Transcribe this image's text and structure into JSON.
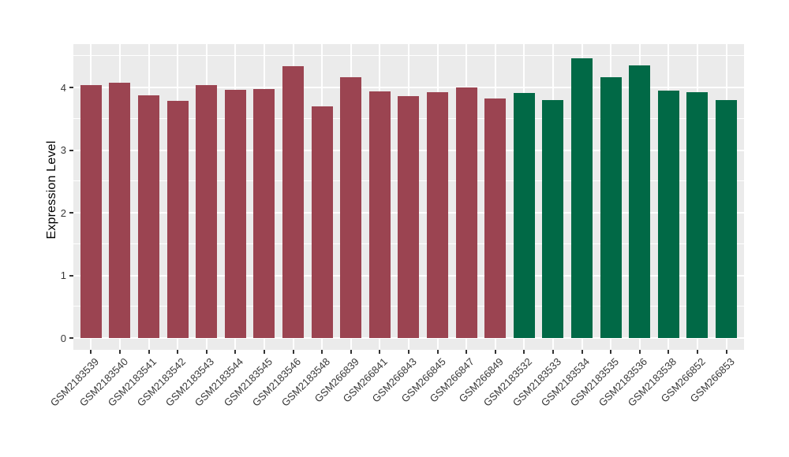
{
  "chart_data": {
    "type": "bar",
    "title": "",
    "xlabel": "",
    "ylabel": "Expression Level",
    "categories": [
      "GSM2183539",
      "GSM2183540",
      "GSM2183541",
      "GSM2183542",
      "GSM2183543",
      "GSM2183544",
      "GSM2183545",
      "GSM2183546",
      "GSM2183548",
      "GSM266839",
      "GSM266841",
      "GSM266843",
      "GSM266845",
      "GSM266847",
      "GSM266849",
      "GSM2183532",
      "GSM2183533",
      "GSM2183534",
      "GSM2183535",
      "GSM2183536",
      "GSM2183538",
      "GSM266852",
      "GSM266853"
    ],
    "values": [
      4.04,
      4.07,
      3.88,
      3.79,
      4.04,
      3.96,
      3.97,
      4.34,
      3.7,
      4.17,
      3.94,
      3.86,
      3.92,
      4.0,
      3.83,
      3.91,
      3.8,
      4.46,
      4.17,
      4.35,
      3.95,
      3.93,
      3.8
    ],
    "groups": [
      0,
      0,
      0,
      0,
      0,
      0,
      0,
      0,
      0,
      0,
      0,
      0,
      0,
      0,
      0,
      1,
      1,
      1,
      1,
      1,
      1,
      1,
      1
    ],
    "group_names": [
      "maroon-group",
      "green-group"
    ],
    "group_colors": [
      "#9b4451",
      "#016946"
    ],
    "yticks": [
      "0",
      "1",
      "2",
      "3",
      "4"
    ],
    "ylim": [
      -0.19,
      4.69
    ],
    "grid": "horizontal major+minor white, vertical major white at bar centers",
    "legend": "none",
    "colors": {
      "background": "#ffffff",
      "panel_background": "#ebebeb",
      "grid": "#ffffff",
      "tick": "#333333",
      "axis_text": "#383838",
      "axis_title": "#000000"
    }
  }
}
